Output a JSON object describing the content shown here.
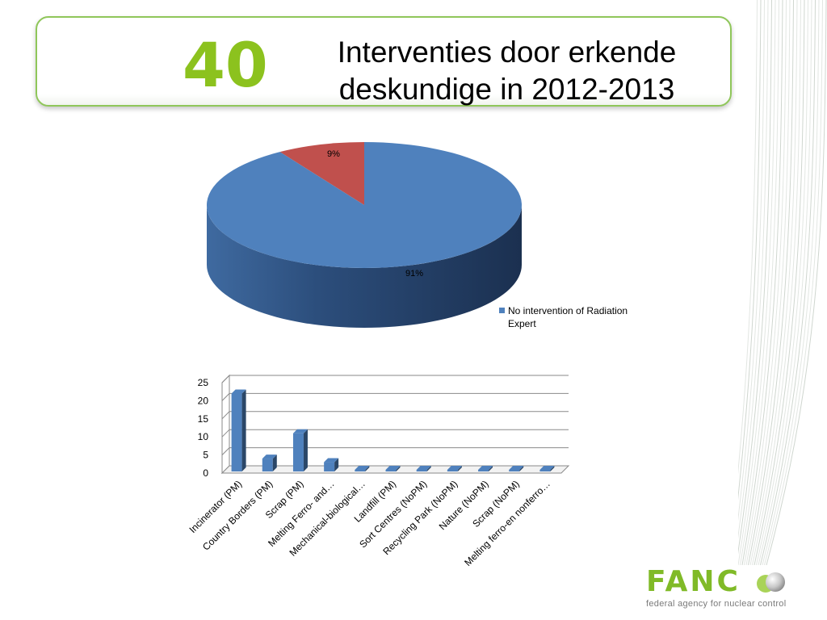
{
  "slide": {
    "number": "40",
    "title_line1": "Interventies door erkende",
    "title_line2": "deskundige in 2012-2013"
  },
  "logo": {
    "text": "FANC",
    "tagline": "federal agency for nuclear control"
  },
  "colors": {
    "accent_green": "#8cc21e",
    "series_blue": "#4f81bd",
    "series_red": "#c0504d"
  },
  "chart_data": [
    {
      "type": "pie",
      "title": "",
      "slices": [
        {
          "name": "",
          "value": 9,
          "label": "9%",
          "color": "#c0504d"
        },
        {
          "name": "No intervention of Radiation Expert",
          "value": 91,
          "label": "91%",
          "color": "#4f81bd"
        }
      ],
      "legend": {
        "placement": "right",
        "entries": [
          "No intervention of Radiation Expert"
        ]
      }
    },
    {
      "type": "bar",
      "title": "",
      "xlabel": "",
      "ylabel": "",
      "categories": [
        "Incinerator (PM)",
        "Country Borders (PM)",
        "Scrap (PM)",
        "Melting Ferro- and…",
        "Mechanical-biological…",
        "Landfill (PM)",
        "Sort Centres (NoPM)",
        "Recycling Park (NoPM)",
        "Nature (NoPM)",
        "Scrap (NoPM)",
        "Melting ferro-en nonferro…"
      ],
      "values": [
        22,
        4,
        11,
        3,
        0,
        0,
        0,
        0,
        0,
        0,
        0
      ],
      "ylim": [
        0,
        25
      ],
      "yticks": [
        0,
        5,
        10,
        15,
        20,
        25
      ],
      "grid": true
    }
  ]
}
